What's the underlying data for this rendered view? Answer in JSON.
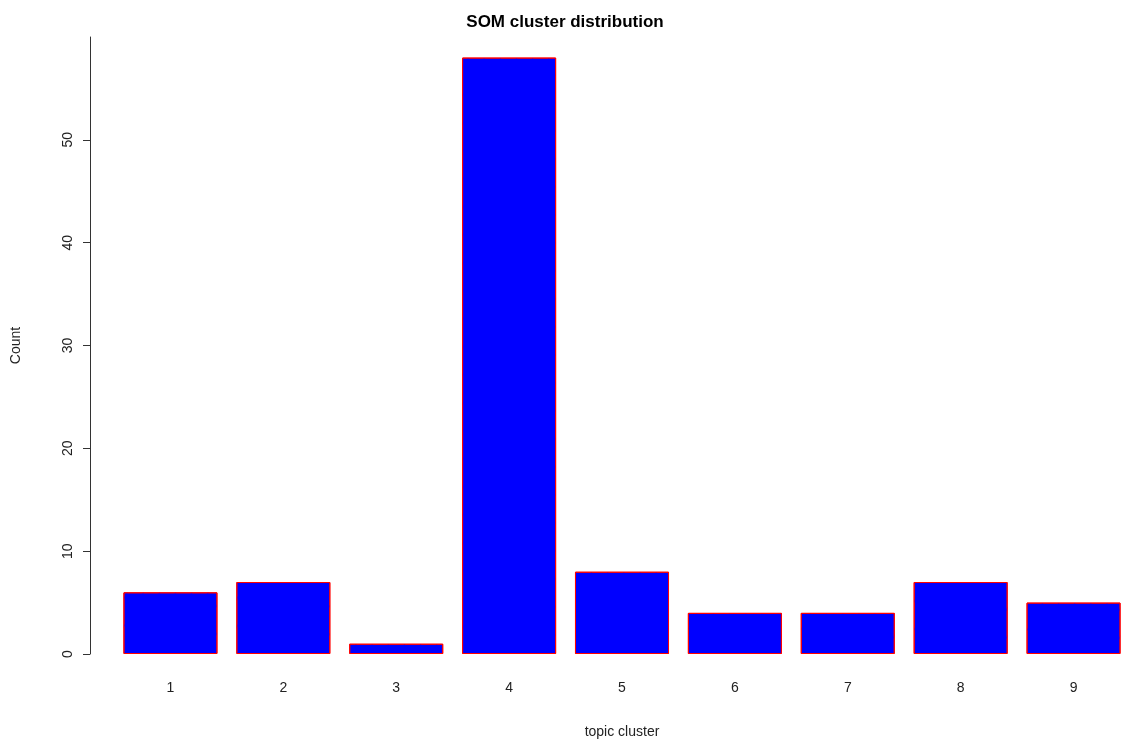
{
  "chart_data": {
    "type": "bar",
    "title": "SOM cluster distribution",
    "xlabel": "topic cluster",
    "ylabel": "Count",
    "categories": [
      "1",
      "2",
      "3",
      "4",
      "5",
      "6",
      "7",
      "8",
      "9"
    ],
    "values": [
      6,
      7,
      1,
      58,
      8,
      4,
      4,
      7,
      5
    ],
    "color": "#0000ff",
    "ylim": [
      0,
      60
    ],
    "yticks": [
      0,
      10,
      20,
      30,
      40,
      50
    ],
    "grid": false
  }
}
